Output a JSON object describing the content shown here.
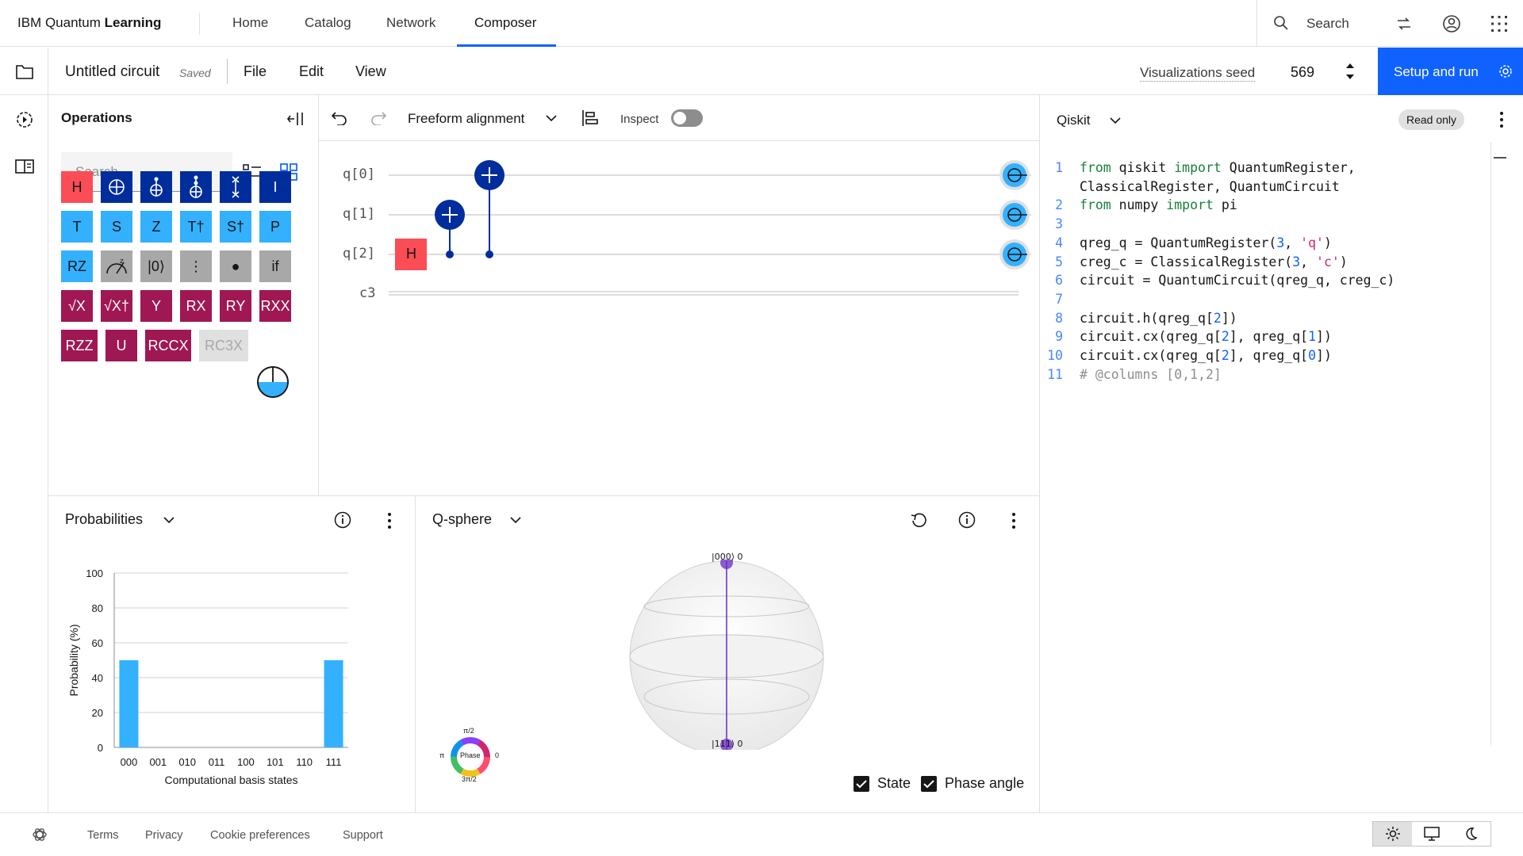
{
  "nav": {
    "brand_prefix": "IBM Quantum ",
    "brand_bold": "Learning",
    "items": [
      {
        "label": "Home"
      },
      {
        "label": "Catalog"
      },
      {
        "label": "Network"
      },
      {
        "label": "Composer",
        "active": true
      }
    ],
    "search_label": "Search"
  },
  "toolbar": {
    "circuit_name": "Untitled circuit",
    "saved": "Saved",
    "menus": [
      "File",
      "Edit",
      "View"
    ],
    "seed_label": "Visualizations seed",
    "seed_value": "569",
    "setup_run": "Setup and run"
  },
  "operations": {
    "title": "Operations",
    "search_placeholder": "Search",
    "gates": [
      {
        "label": "H",
        "style": "red"
      },
      {
        "label": "",
        "style": "navy",
        "icon": "cnot-icon"
      },
      {
        "label": "",
        "style": "navy",
        "icon": "toffoli-icon"
      },
      {
        "label": "",
        "style": "navy",
        "icon": "ccx-icon"
      },
      {
        "label": "",
        "style": "navy",
        "icon": "swap-icon"
      },
      {
        "label": "I",
        "style": "navy"
      },
      {
        "label": "T",
        "style": "cyan"
      },
      {
        "label": "S",
        "style": "cyan"
      },
      {
        "label": "Z",
        "style": "cyan"
      },
      {
        "label": "T†",
        "style": "cyan"
      },
      {
        "label": "S†",
        "style": "cyan"
      },
      {
        "label": "P",
        "style": "cyan"
      },
      {
        "label": "RZ",
        "style": "cyan"
      },
      {
        "label": "",
        "style": "gray",
        "icon": "measure-z-icon"
      },
      {
        "label": "|0⟩",
        "style": "gray"
      },
      {
        "label": "⋮",
        "style": "gray"
      },
      {
        "label": "●",
        "style": "gray"
      },
      {
        "label": "if",
        "style": "gray"
      },
      {
        "label": "√X",
        "style": "magenta"
      },
      {
        "label": "√X†",
        "style": "magenta"
      },
      {
        "label": "Y",
        "style": "magenta"
      },
      {
        "label": "RX",
        "style": "magenta"
      },
      {
        "label": "RY",
        "style": "magenta"
      },
      {
        "label": "RXX",
        "style": "magenta"
      },
      {
        "label": "RZZ",
        "style": "magenta"
      },
      {
        "label": "U",
        "style": "magenta"
      },
      {
        "label": "RCCX",
        "style": "magenta"
      },
      {
        "label": "RC3X",
        "style": "disabled"
      }
    ]
  },
  "circuit": {
    "alignment": "Freeform alignment",
    "inspect_label": "Inspect",
    "qubits": [
      "q[0]",
      "q[1]",
      "q[2]"
    ],
    "classical": "c3",
    "h_gate_label": "H"
  },
  "code": {
    "language": "Qiskit",
    "readonly": "Read only",
    "lines": [
      {
        "n": "1",
        "parts": [
          [
            "kw",
            "from"
          ],
          [
            "t",
            " qiskit "
          ],
          [
            "kw",
            "import"
          ],
          [
            "t",
            " QuantumRegister,"
          ]
        ]
      },
      {
        "n": "",
        "parts": [
          [
            "t",
            "ClassicalRegister, QuantumCircuit"
          ]
        ]
      },
      {
        "n": "2",
        "parts": [
          [
            "kw",
            "from"
          ],
          [
            "t",
            " numpy "
          ],
          [
            "kw",
            "import"
          ],
          [
            "t",
            " pi"
          ]
        ]
      },
      {
        "n": "3",
        "parts": []
      },
      {
        "n": "4",
        "parts": [
          [
            "t",
            "qreg_q = QuantumRegister("
          ],
          [
            "num",
            "3"
          ],
          [
            "t",
            ", "
          ],
          [
            "str",
            "'q'"
          ],
          [
            "t",
            ")"
          ]
        ]
      },
      {
        "n": "5",
        "parts": [
          [
            "t",
            "creg_c = ClassicalRegister("
          ],
          [
            "num",
            "3"
          ],
          [
            "t",
            ", "
          ],
          [
            "str",
            "'c'"
          ],
          [
            "t",
            ")"
          ]
        ]
      },
      {
        "n": "6",
        "parts": [
          [
            "t",
            "circuit = QuantumCircuit(qreg_q, creg_c)"
          ]
        ]
      },
      {
        "n": "7",
        "parts": []
      },
      {
        "n": "8",
        "parts": [
          [
            "t",
            "circuit.h(qreg_q["
          ],
          [
            "num",
            "2"
          ],
          [
            "t",
            "])"
          ]
        ]
      },
      {
        "n": "9",
        "parts": [
          [
            "t",
            "circuit.cx(qreg_q["
          ],
          [
            "num",
            "2"
          ],
          [
            "t",
            "], qreg_q["
          ],
          [
            "num",
            "1"
          ],
          [
            "t",
            "])"
          ]
        ]
      },
      {
        "n": "10",
        "parts": [
          [
            "t",
            "circuit.cx(qreg_q["
          ],
          [
            "num",
            "2"
          ],
          [
            "t",
            "], qreg_q["
          ],
          [
            "num",
            "0"
          ],
          [
            "t",
            "])"
          ]
        ]
      },
      {
        "n": "11",
        "parts": [
          [
            "cm",
            "# @columns [0,1,2]"
          ]
        ]
      }
    ]
  },
  "probabilities": {
    "title": "Probabilities",
    "chart_data": {
      "type": "bar",
      "categories": [
        "000",
        "001",
        "010",
        "011",
        "100",
        "101",
        "110",
        "111"
      ],
      "values": [
        50,
        0,
        0,
        0,
        0,
        0,
        0,
        50
      ],
      "xlabel": "Computational basis states",
      "ylabel": "Probability (%)",
      "ylim": [
        0,
        100
      ],
      "yticks": [
        "0",
        "20",
        "40",
        "60",
        "80",
        "100"
      ],
      "bar_color": "#33b1ff"
    }
  },
  "qsphere": {
    "title": "Q-sphere",
    "top_state": "|000⟩ 0",
    "bottom_state": "|111⟩ 0",
    "phase_label": "Phase",
    "phase_top": "π/2",
    "phase_left": "π",
    "phase_right": "0",
    "phase_bottom": "3π/2",
    "state_label": "State",
    "phase_angle_label": "Phase angle"
  },
  "footer": {
    "links": [
      "Terms",
      "Privacy",
      "Cookie preferences",
      "Support"
    ]
  },
  "colors": {
    "accent": "#0f62fe",
    "qubit_blue": "#33b1ff",
    "gate_navy": "#002d9c",
    "gate_red": "#fa4d56",
    "gate_magenta": "#9f1853"
  }
}
